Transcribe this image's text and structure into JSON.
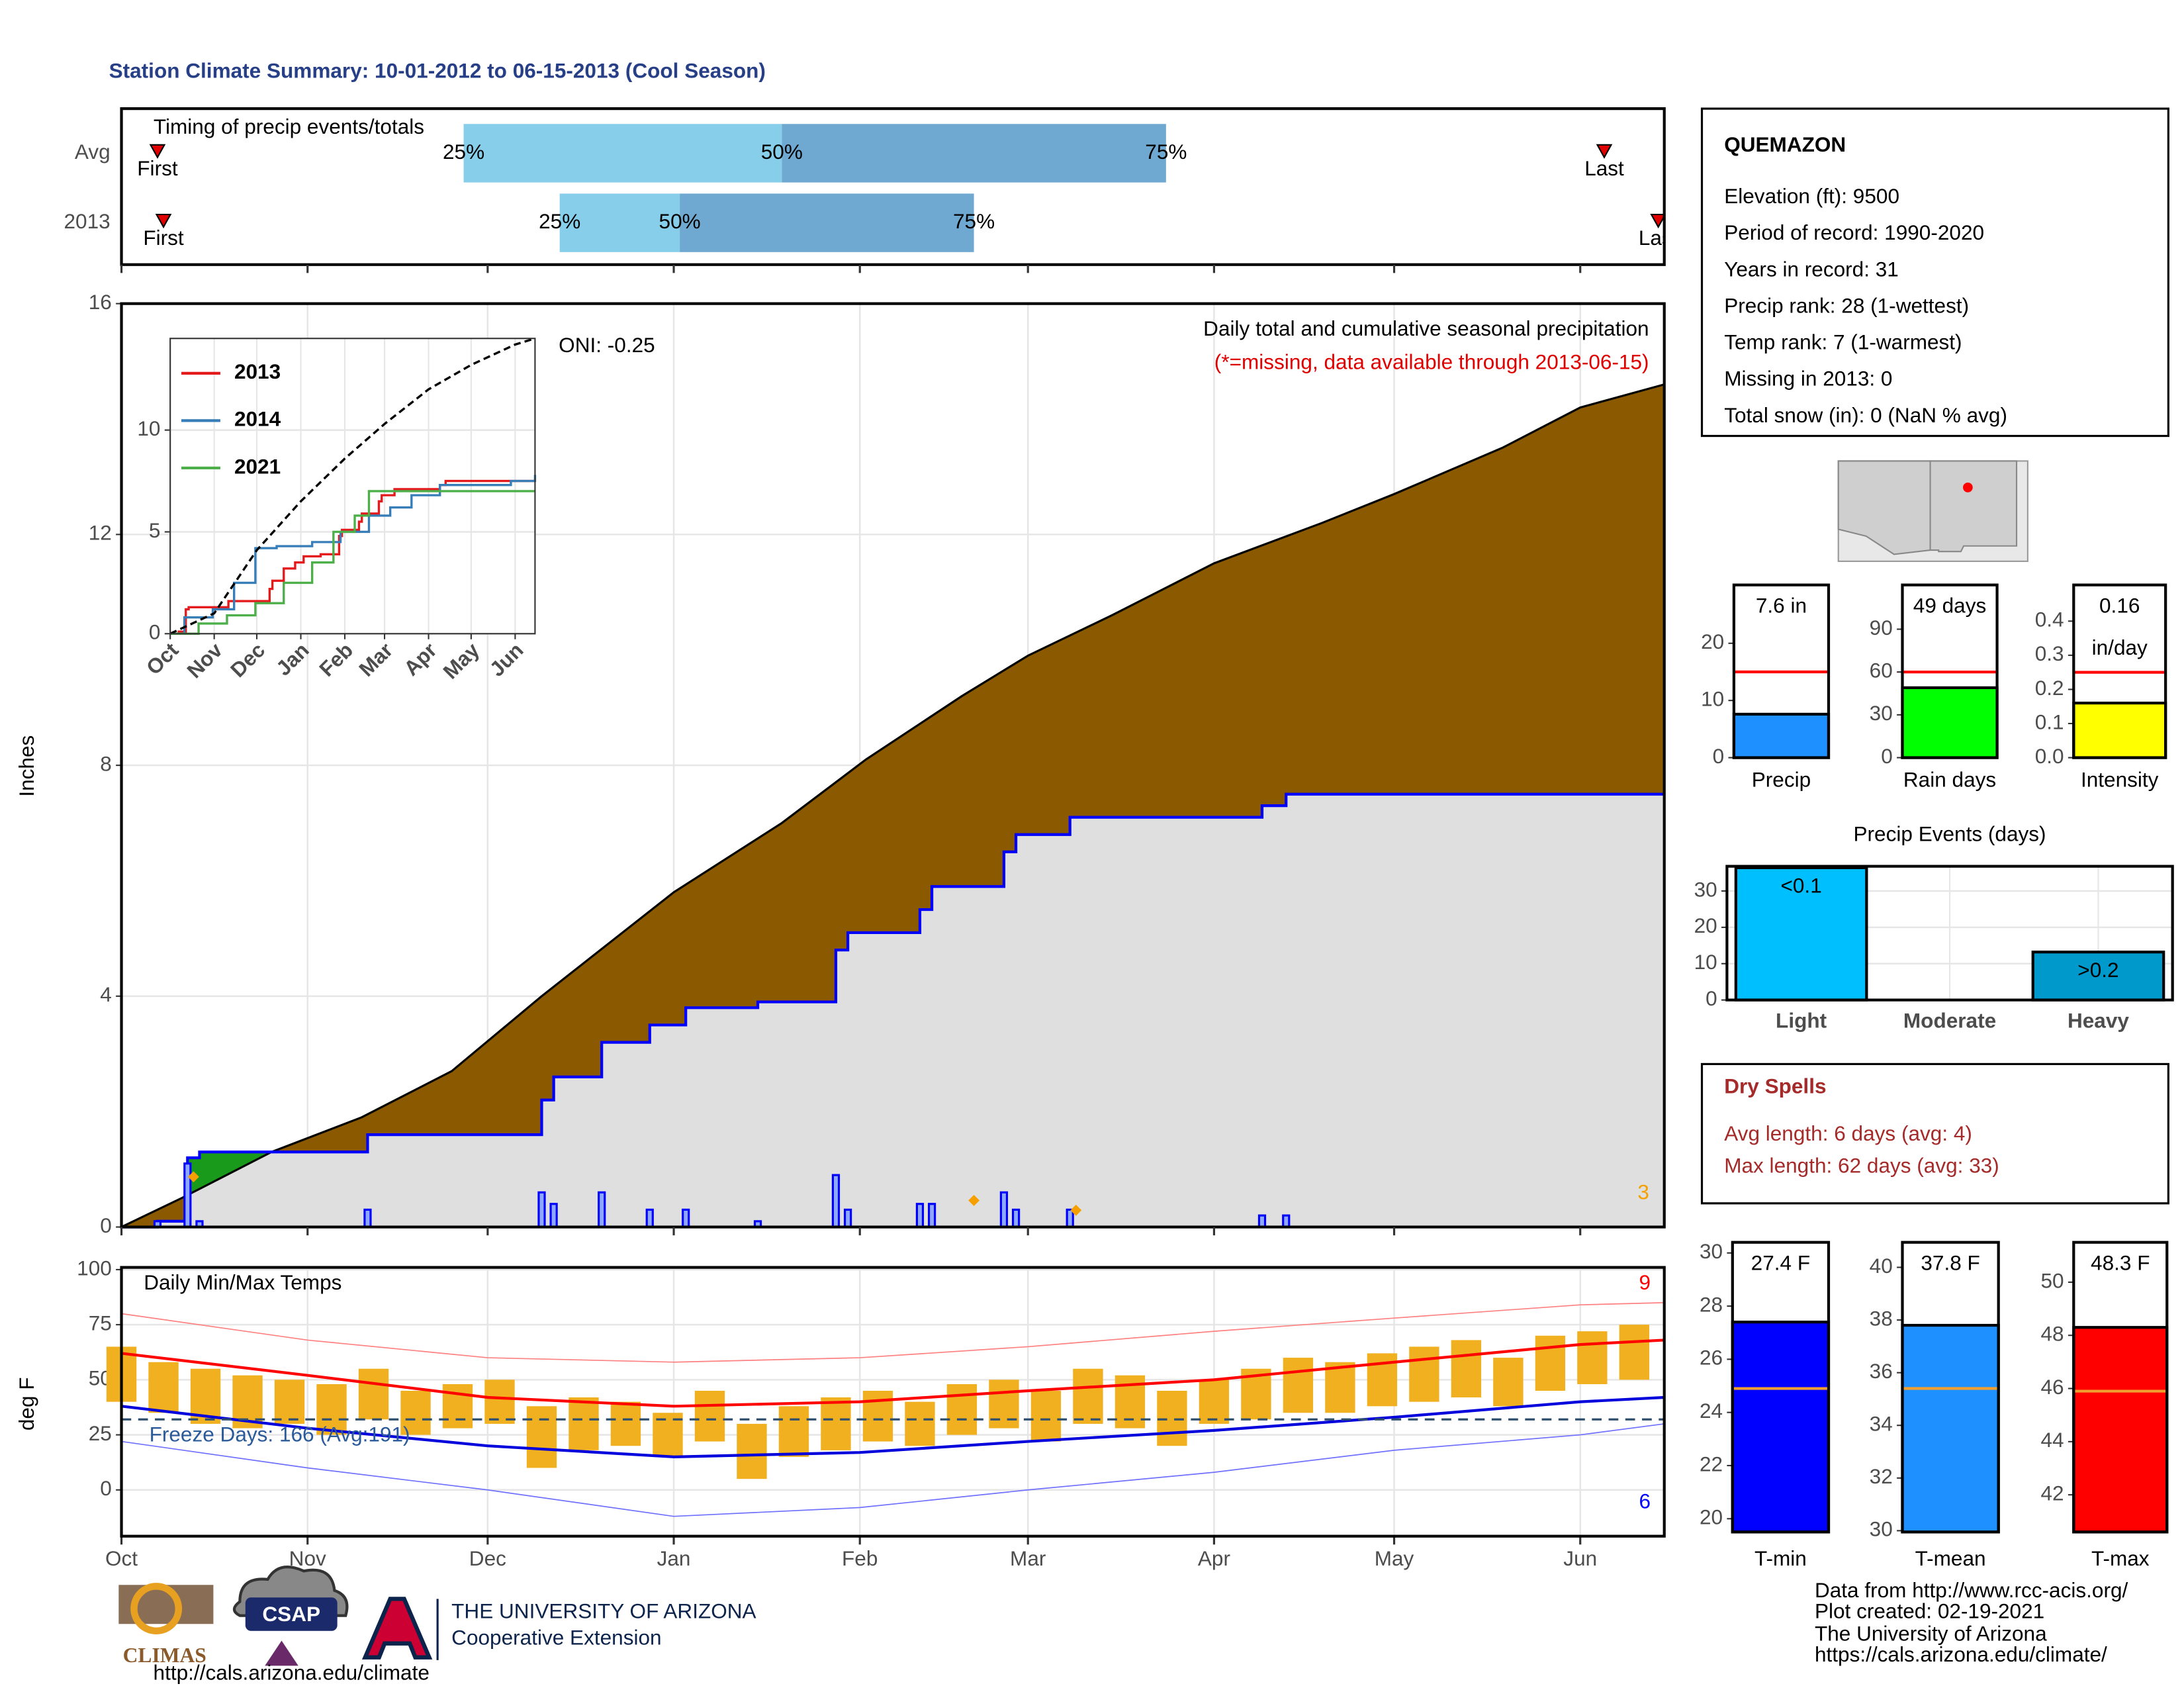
{
  "title": "Station Climate Summary: 10-01-2012 to 06-15-2013 (Cool Season)",
  "station": {
    "name": "QUEMAZON",
    "details": [
      "Elevation (ft): 9500",
      "Period of record: 1990-2020",
      "Years in record: 31",
      "Precip rank: 28 (1-wettest)",
      "Temp rank: 7 (1-warmest)",
      "Missing in 2013: 0",
      "Total snow (in): 0 (NaN % avg)"
    ]
  },
  "dry_spells": {
    "title": "Dry Spells",
    "lines": [
      "Avg length: 6 days (avg: 4)",
      "Max length: 62 days (avg: 33)"
    ]
  },
  "credits": [
    "Data from http://www.rcc-acis.org/",
    "Plot created: 02-19-2021",
    "The University of Arizona",
    "https://cals.arizona.edu/climate/"
  ],
  "logos": {
    "climas": "CLIMAS",
    "csap": "CSAP",
    "csap_url": "http://cals.arizona.edu/climate",
    "ua": "THE UNIVERSITY OF ARIZONA",
    "extension": "Cooperative Extension"
  },
  "chart_data": [
    {
      "type": "timing",
      "title": "Timing of precip events/totals",
      "labels": [
        "First",
        "25%",
        "50%",
        "75%",
        "Last"
      ],
      "colors": [
        "#87ceeb",
        "#6fa8d0"
      ],
      "xlim": [
        0,
        257
      ],
      "xticks": [
        0,
        31,
        61,
        92,
        123,
        151,
        182,
        212,
        243
      ],
      "series": [
        {
          "name": "Avg",
          "values": [
            6,
            57,
            110,
            174,
            247
          ]
        },
        {
          "name": "2013",
          "values": [
            7,
            73,
            93,
            142,
            256
          ]
        }
      ]
    },
    {
      "type": "cumulative",
      "title": "Daily total and cumulative seasonal precipitation",
      "subtitle": "(*=missing, data available through 2013-06-15)",
      "annotation": "ONI: -0.25",
      "ylabel": "Inches",
      "xlim": [
        0,
        257
      ],
      "xticks": [
        0,
        31,
        61,
        92,
        123,
        151,
        182,
        212,
        243
      ],
      "ylim": [
        0,
        16
      ],
      "yticks": [
        0,
        4,
        8,
        12,
        16
      ],
      "grid": true,
      "series": [
        {
          "color": "#8b5a00",
          "x": [
            0,
            10,
            25,
            40,
            55,
            70,
            92,
            110,
            124,
            140,
            151,
            165,
            182,
            200,
            212,
            230,
            243,
            257
          ],
          "values": [
            0,
            0.5,
            1.3,
            1.9,
            2.7,
            4.0,
            5.8,
            7.0,
            8.1,
            9.2,
            9.9,
            10.6,
            11.5,
            12.2,
            12.7,
            13.5,
            14.2,
            14.6
          ]
        },
        {
          "color": "#dfdfdf",
          "line_color": "#0000ff",
          "surplus_color": "#1a9a1a",
          "x": [
            0,
            6,
            11,
            13,
            41,
            70,
            72,
            80,
            88,
            94,
            106,
            119,
            121,
            133,
            135,
            147,
            149,
            158,
            190,
            194,
            257
          ],
          "values": [
            0,
            0.1,
            1.2,
            1.3,
            1.6,
            2.2,
            2.6,
            3.2,
            3.5,
            3.8,
            3.9,
            4.8,
            5.1,
            5.5,
            5.9,
            6.5,
            6.8,
            7.1,
            7.3,
            7.5,
            7.5
          ]
        },
        {
          "color": "#0000ff",
          "x": [
            6,
            11,
            13,
            41,
            70,
            72,
            80,
            88,
            94,
            106,
            119,
            121,
            133,
            135,
            147,
            149,
            158,
            190,
            194
          ],
          "values": [
            0.1,
            1.1,
            0.1,
            0.3,
            0.6,
            0.4,
            0.6,
            0.3,
            0.3,
            0.1,
            0.9,
            0.3,
            0.4,
            0.4,
            0.6,
            0.3,
            0.3,
            0.2,
            0.2
          ]
        }
      ],
      "missing": {
        "color": "#f5a000",
        "x": [
          12,
          142,
          159
        ],
        "values": [
          0.87,
          0.46,
          0.29
        ],
        "count": 3
      }
    },
    {
      "type": "line",
      "xlim": [
        0,
        257
      ],
      "xticks": [
        {
          "value": 0,
          "label": "Oct"
        },
        {
          "value": 31,
          "label": "Nov"
        },
        {
          "value": 61,
          "label": "Dec"
        },
        {
          "value": 92,
          "label": "Jan"
        },
        {
          "value": 123,
          "label": "Feb"
        },
        {
          "value": 151,
          "label": "Mar"
        },
        {
          "value": 182,
          "label": "Apr"
        },
        {
          "value": 212,
          "label": "May"
        },
        {
          "value": 243,
          "label": "Jun"
        }
      ],
      "ylim": [
        0,
        14.5
      ],
      "yticks": [
        0,
        5,
        10
      ],
      "grid": true,
      "series": [
        {
          "name": "2013",
          "color": "#e41a1c",
          "x": [
            0,
            6,
            11,
            13,
            41,
            70,
            72,
            80,
            88,
            94,
            106,
            119,
            121,
            133,
            135,
            147,
            149,
            158,
            190,
            194,
            257
          ],
          "values": [
            0,
            0.1,
            1.2,
            1.3,
            1.6,
            2.2,
            2.6,
            3.2,
            3.5,
            3.8,
            3.9,
            4.8,
            5.1,
            5.5,
            5.9,
            6.5,
            6.8,
            7.1,
            7.3,
            7.5,
            7.5
          ]
        },
        {
          "name": "2014",
          "color": "#377eb8",
          "x": [
            0,
            10,
            30,
            45,
            60,
            75,
            100,
            120,
            140,
            155,
            170,
            190,
            240,
            257
          ],
          "values": [
            0,
            0.8,
            1.2,
            2.5,
            4.2,
            4.3,
            4.5,
            5.0,
            5.8,
            6.2,
            6.8,
            7.3,
            7.5,
            7.8
          ]
        },
        {
          "name": "2021",
          "color": "#4daf4a",
          "x": [
            0,
            20,
            40,
            60,
            80,
            100,
            115,
            130,
            140,
            200,
            257
          ],
          "values": [
            0,
            0.5,
            0.9,
            1.5,
            2.5,
            3.5,
            5.0,
            5.8,
            7.0,
            7.0,
            7.0
          ]
        },
        {
          "color": "#000000",
          "dashed": true,
          "x": [
            0,
            31,
            61,
            92,
            123,
            151,
            182,
            212,
            243,
            257
          ],
          "values": [
            0,
            1.0,
            4.1,
            6.5,
            8.6,
            10.3,
            12.0,
            13.2,
            14.2,
            14.5
          ]
        }
      ]
    },
    {
      "type": "temperature",
      "title": "Daily Min/Max Temps",
      "ylabel": "deg F",
      "xlim": [
        0,
        257
      ],
      "xticks": [
        {
          "value": 0,
          "label": "Oct"
        },
        {
          "value": 31,
          "label": "Nov"
        },
        {
          "value": 61,
          "label": "Dec"
        },
        {
          "value": 92,
          "label": "Jan"
        },
        {
          "value": 123,
          "label": "Feb"
        },
        {
          "value": 151,
          "label": "Mar"
        },
        {
          "value": 182,
          "label": "Apr"
        },
        {
          "value": 212,
          "label": "May"
        },
        {
          "value": 243,
          "label": "Jun"
        }
      ],
      "ylim": [
        -21,
        101
      ],
      "yticks": [
        0,
        25,
        50,
        75,
        100
      ],
      "grid": true,
      "observed": {
        "color": "#f0b020",
        "x": [
          0,
          7,
          14,
          21,
          28,
          35,
          42,
          49,
          56,
          63,
          70,
          77,
          84,
          91,
          98,
          105,
          112,
          119,
          126,
          133,
          140,
          147,
          154,
          161,
          168,
          175,
          182,
          189,
          196,
          203,
          210,
          217,
          224,
          231,
          238,
          245,
          252
        ],
        "tmin": [
          40,
          35,
          30,
          28,
          30,
          25,
          32,
          25,
          28,
          30,
          10,
          18,
          20,
          15,
          22,
          5,
          15,
          18,
          22,
          20,
          25,
          28,
          22,
          30,
          28,
          20,
          30,
          32,
          35,
          35,
          38,
          40,
          42,
          38,
          45,
          48,
          50
        ],
        "tmax": [
          65,
          58,
          55,
          52,
          50,
          48,
          55,
          45,
          48,
          50,
          38,
          42,
          40,
          35,
          45,
          30,
          38,
          42,
          45,
          40,
          48,
          50,
          45,
          55,
          52,
          45,
          50,
          55,
          60,
          58,
          62,
          65,
          68,
          60,
          70,
          72,
          75
        ]
      },
      "series": [
        {
          "color": "#ff8080",
          "width": 0.8,
          "x": [
            0,
            31,
            61,
            92,
            123,
            151,
            182,
            212,
            243,
            257
          ],
          "values": [
            80,
            68,
            60,
            58,
            60,
            65,
            72,
            78,
            84,
            85
          ]
        },
        {
          "color": "#7070ff",
          "width": 0.8,
          "x": [
            0,
            31,
            61,
            92,
            123,
            151,
            182,
            212,
            243,
            257
          ],
          "values": [
            22,
            10,
            0,
            -12,
            -8,
            0,
            8,
            18,
            25,
            30
          ]
        },
        {
          "color": "#ff0000",
          "width": 2,
          "x": [
            0,
            31,
            61,
            92,
            123,
            151,
            182,
            212,
            243,
            257
          ],
          "values": [
            62,
            52,
            42,
            38,
            40,
            45,
            50,
            58,
            66,
            68
          ]
        },
        {
          "color": "#0000dd",
          "width": 2,
          "x": [
            0,
            31,
            61,
            92,
            123,
            151,
            182,
            212,
            243,
            257
          ],
          "values": [
            38,
            28,
            20,
            15,
            17,
            22,
            27,
            33,
            40,
            42
          ]
        }
      ],
      "freeze": {
        "value": 32,
        "color": "#2f4f6f",
        "label": "Freeze Days: 166 (Avg:191)",
        "label_color": "#2a5a9a"
      },
      "record_counts": [
        {
          "value": 9,
          "color": "#ff0000"
        },
        {
          "value": 6,
          "color": "#0000ff"
        }
      ]
    },
    {
      "type": "bar",
      "categories": [
        "Precip"
      ],
      "values": [
        7.6
      ],
      "value_labels": [
        "7.6 in"
      ],
      "color": "#1e90ff",
      "ylim": [
        0,
        30.2
      ],
      "yticks": [
        0,
        10,
        20
      ],
      "reference": 15,
      "reference_color": "#ff0000"
    },
    {
      "type": "bar",
      "categories": [
        "Rain days"
      ],
      "values": [
        49
      ],
      "value_labels": [
        "49 days"
      ],
      "color": "#00ff00",
      "ylim": [
        0,
        121
      ],
      "yticks": [
        0,
        30,
        60,
        90
      ],
      "reference": 60,
      "reference_color": "#ff0000"
    },
    {
      "type": "bar",
      "categories": [
        "Intensity"
      ],
      "values": [
        0.16
      ],
      "value_labels": [
        "0.16"
      ],
      "unit": "in/day",
      "color": "#ffff00",
      "ylim": [
        0,
        0.506
      ],
      "yticks": [
        {
          "value": 0,
          "label": "0.0"
        },
        0.1,
        0.2,
        0.3,
        0.4
      ],
      "reference": 0.25,
      "reference_color": "#ff0000"
    },
    {
      "type": "bar",
      "title": "Precip Events (days)",
      "categories": [
        "Light",
        "Moderate",
        "Heavy"
      ],
      "values": [
        36.4,
        0,
        13.2
      ],
      "bar_labels": [
        "<0.1",
        null,
        ">0.2"
      ],
      "colors": [
        "#00bfff",
        "#00bfff",
        "#0099cc"
      ],
      "ylim": [
        0,
        36.8
      ],
      "yticks": [
        0,
        10,
        20,
        30
      ],
      "grid": true
    },
    {
      "type": "bar",
      "categories": [
        "T-min"
      ],
      "values": [
        27.4
      ],
      "value_labels": [
        "27.4 F"
      ],
      "color": "#0000ff",
      "ylim": [
        19.5,
        30.4
      ],
      "yticks": [
        20,
        22,
        24,
        26,
        28,
        30
      ],
      "reference": 24.9,
      "reference_color": "#f0a030"
    },
    {
      "type": "bar",
      "categories": [
        "T-mean"
      ],
      "values": [
        37.8
      ],
      "value_labels": [
        "37.8 F"
      ],
      "color": "#1e90ff",
      "ylim": [
        29.95,
        40.95
      ],
      "yticks": [
        30,
        32,
        34,
        36,
        38,
        40
      ],
      "reference": 35.4,
      "reference_color": "#f0a030"
    },
    {
      "type": "bar",
      "categories": [
        "T-max"
      ],
      "values": [
        48.3
      ],
      "value_labels": [
        "48.3 F"
      ],
      "color": "#ff0000",
      "ylim": [
        40.6,
        51.5
      ],
      "yticks": [
        42,
        44,
        46,
        48,
        50
      ],
      "reference": 45.9,
      "reference_color": "#f0a030"
    }
  ]
}
